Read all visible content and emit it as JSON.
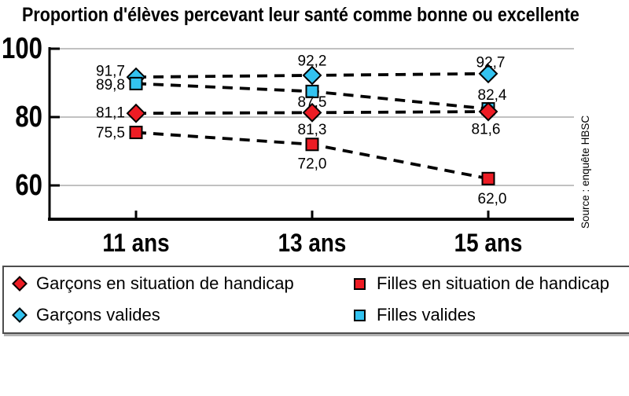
{
  "title": "Proportion d'élèves percevant leur santé comme bonne ou excellente",
  "source": "Source : enquête HBSC",
  "colors": {
    "red": "#ed1c24",
    "cyan": "#33c3f0",
    "grid": "#9c9c9c",
    "axis": "#000000"
  },
  "chart_data": {
    "type": "line",
    "line_style": "dashed",
    "categories": [
      "11 ans",
      "13 ans",
      "15 ans"
    ],
    "y_ticks": [
      100,
      80,
      60
    ],
    "ylim": [
      50,
      104
    ],
    "grid": "horizontal",
    "legend_position": "bottom",
    "series": [
      {
        "name": "Garçons en situation de handicap",
        "marker": "diamond",
        "color": "#ed1c24",
        "values": [
          81.1,
          81.3,
          81.6
        ],
        "labels": [
          "81,1",
          "81,3",
          "81,6"
        ]
      },
      {
        "name": "Filles en situation de handicap",
        "marker": "square",
        "color": "#ed1c24",
        "values": [
          75.5,
          72.0,
          62.0
        ],
        "labels": [
          "75,5",
          "72,0",
          "62,0"
        ]
      },
      {
        "name": "Garçons valides",
        "marker": "diamond",
        "color": "#33c3f0",
        "values": [
          91.7,
          92.2,
          92.7
        ],
        "labels": [
          "91,7",
          "92,2",
          "92,7"
        ]
      },
      {
        "name": "Filles valides",
        "marker": "square",
        "color": "#33c3f0",
        "values": [
          89.8,
          87.5,
          82.4
        ],
        "labels": [
          "89,8",
          "87,5",
          "82,4"
        ]
      }
    ]
  }
}
